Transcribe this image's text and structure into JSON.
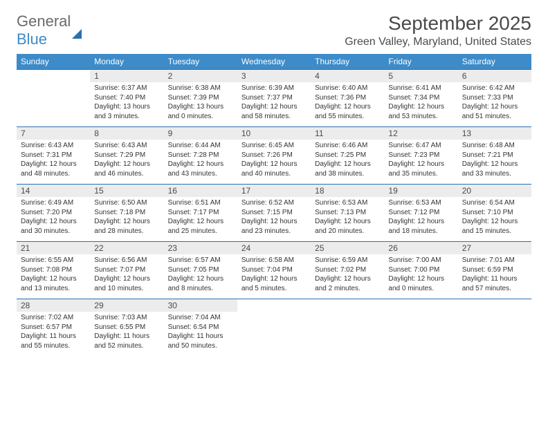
{
  "logo": {
    "part1": "General",
    "part2": "Blue"
  },
  "monthTitle": "September 2025",
  "location": "Green Valley, Maryland, United States",
  "dayHeaders": [
    "Sunday",
    "Monday",
    "Tuesday",
    "Wednesday",
    "Thursday",
    "Friday",
    "Saturday"
  ],
  "colors": {
    "headerBg": "#3d8bc8",
    "rowBorder": "#2a6fb0",
    "dayNumBg": "#ececec",
    "textDark": "#4a4a4a"
  },
  "weeks": [
    [
      null,
      {
        "n": "1",
        "sr": "Sunrise: 6:37 AM",
        "ss": "Sunset: 7:40 PM",
        "dl": "Daylight: 13 hours and 3 minutes."
      },
      {
        "n": "2",
        "sr": "Sunrise: 6:38 AM",
        "ss": "Sunset: 7:39 PM",
        "dl": "Daylight: 13 hours and 0 minutes."
      },
      {
        "n": "3",
        "sr": "Sunrise: 6:39 AM",
        "ss": "Sunset: 7:37 PM",
        "dl": "Daylight: 12 hours and 58 minutes."
      },
      {
        "n": "4",
        "sr": "Sunrise: 6:40 AM",
        "ss": "Sunset: 7:36 PM",
        "dl": "Daylight: 12 hours and 55 minutes."
      },
      {
        "n": "5",
        "sr": "Sunrise: 6:41 AM",
        "ss": "Sunset: 7:34 PM",
        "dl": "Daylight: 12 hours and 53 minutes."
      },
      {
        "n": "6",
        "sr": "Sunrise: 6:42 AM",
        "ss": "Sunset: 7:33 PM",
        "dl": "Daylight: 12 hours and 51 minutes."
      }
    ],
    [
      {
        "n": "7",
        "sr": "Sunrise: 6:43 AM",
        "ss": "Sunset: 7:31 PM",
        "dl": "Daylight: 12 hours and 48 minutes."
      },
      {
        "n": "8",
        "sr": "Sunrise: 6:43 AM",
        "ss": "Sunset: 7:29 PM",
        "dl": "Daylight: 12 hours and 46 minutes."
      },
      {
        "n": "9",
        "sr": "Sunrise: 6:44 AM",
        "ss": "Sunset: 7:28 PM",
        "dl": "Daylight: 12 hours and 43 minutes."
      },
      {
        "n": "10",
        "sr": "Sunrise: 6:45 AM",
        "ss": "Sunset: 7:26 PM",
        "dl": "Daylight: 12 hours and 40 minutes."
      },
      {
        "n": "11",
        "sr": "Sunrise: 6:46 AM",
        "ss": "Sunset: 7:25 PM",
        "dl": "Daylight: 12 hours and 38 minutes."
      },
      {
        "n": "12",
        "sr": "Sunrise: 6:47 AM",
        "ss": "Sunset: 7:23 PM",
        "dl": "Daylight: 12 hours and 35 minutes."
      },
      {
        "n": "13",
        "sr": "Sunrise: 6:48 AM",
        "ss": "Sunset: 7:21 PM",
        "dl": "Daylight: 12 hours and 33 minutes."
      }
    ],
    [
      {
        "n": "14",
        "sr": "Sunrise: 6:49 AM",
        "ss": "Sunset: 7:20 PM",
        "dl": "Daylight: 12 hours and 30 minutes."
      },
      {
        "n": "15",
        "sr": "Sunrise: 6:50 AM",
        "ss": "Sunset: 7:18 PM",
        "dl": "Daylight: 12 hours and 28 minutes."
      },
      {
        "n": "16",
        "sr": "Sunrise: 6:51 AM",
        "ss": "Sunset: 7:17 PM",
        "dl": "Daylight: 12 hours and 25 minutes."
      },
      {
        "n": "17",
        "sr": "Sunrise: 6:52 AM",
        "ss": "Sunset: 7:15 PM",
        "dl": "Daylight: 12 hours and 23 minutes."
      },
      {
        "n": "18",
        "sr": "Sunrise: 6:53 AM",
        "ss": "Sunset: 7:13 PM",
        "dl": "Daylight: 12 hours and 20 minutes."
      },
      {
        "n": "19",
        "sr": "Sunrise: 6:53 AM",
        "ss": "Sunset: 7:12 PM",
        "dl": "Daylight: 12 hours and 18 minutes."
      },
      {
        "n": "20",
        "sr": "Sunrise: 6:54 AM",
        "ss": "Sunset: 7:10 PM",
        "dl": "Daylight: 12 hours and 15 minutes."
      }
    ],
    [
      {
        "n": "21",
        "sr": "Sunrise: 6:55 AM",
        "ss": "Sunset: 7:08 PM",
        "dl": "Daylight: 12 hours and 13 minutes."
      },
      {
        "n": "22",
        "sr": "Sunrise: 6:56 AM",
        "ss": "Sunset: 7:07 PM",
        "dl": "Daylight: 12 hours and 10 minutes."
      },
      {
        "n": "23",
        "sr": "Sunrise: 6:57 AM",
        "ss": "Sunset: 7:05 PM",
        "dl": "Daylight: 12 hours and 8 minutes."
      },
      {
        "n": "24",
        "sr": "Sunrise: 6:58 AM",
        "ss": "Sunset: 7:04 PM",
        "dl": "Daylight: 12 hours and 5 minutes."
      },
      {
        "n": "25",
        "sr": "Sunrise: 6:59 AM",
        "ss": "Sunset: 7:02 PM",
        "dl": "Daylight: 12 hours and 2 minutes."
      },
      {
        "n": "26",
        "sr": "Sunrise: 7:00 AM",
        "ss": "Sunset: 7:00 PM",
        "dl": "Daylight: 12 hours and 0 minutes."
      },
      {
        "n": "27",
        "sr": "Sunrise: 7:01 AM",
        "ss": "Sunset: 6:59 PM",
        "dl": "Daylight: 11 hours and 57 minutes."
      }
    ],
    [
      {
        "n": "28",
        "sr": "Sunrise: 7:02 AM",
        "ss": "Sunset: 6:57 PM",
        "dl": "Daylight: 11 hours and 55 minutes."
      },
      {
        "n": "29",
        "sr": "Sunrise: 7:03 AM",
        "ss": "Sunset: 6:55 PM",
        "dl": "Daylight: 11 hours and 52 minutes."
      },
      {
        "n": "30",
        "sr": "Sunrise: 7:04 AM",
        "ss": "Sunset: 6:54 PM",
        "dl": "Daylight: 11 hours and 50 minutes."
      },
      null,
      null,
      null,
      null
    ]
  ]
}
